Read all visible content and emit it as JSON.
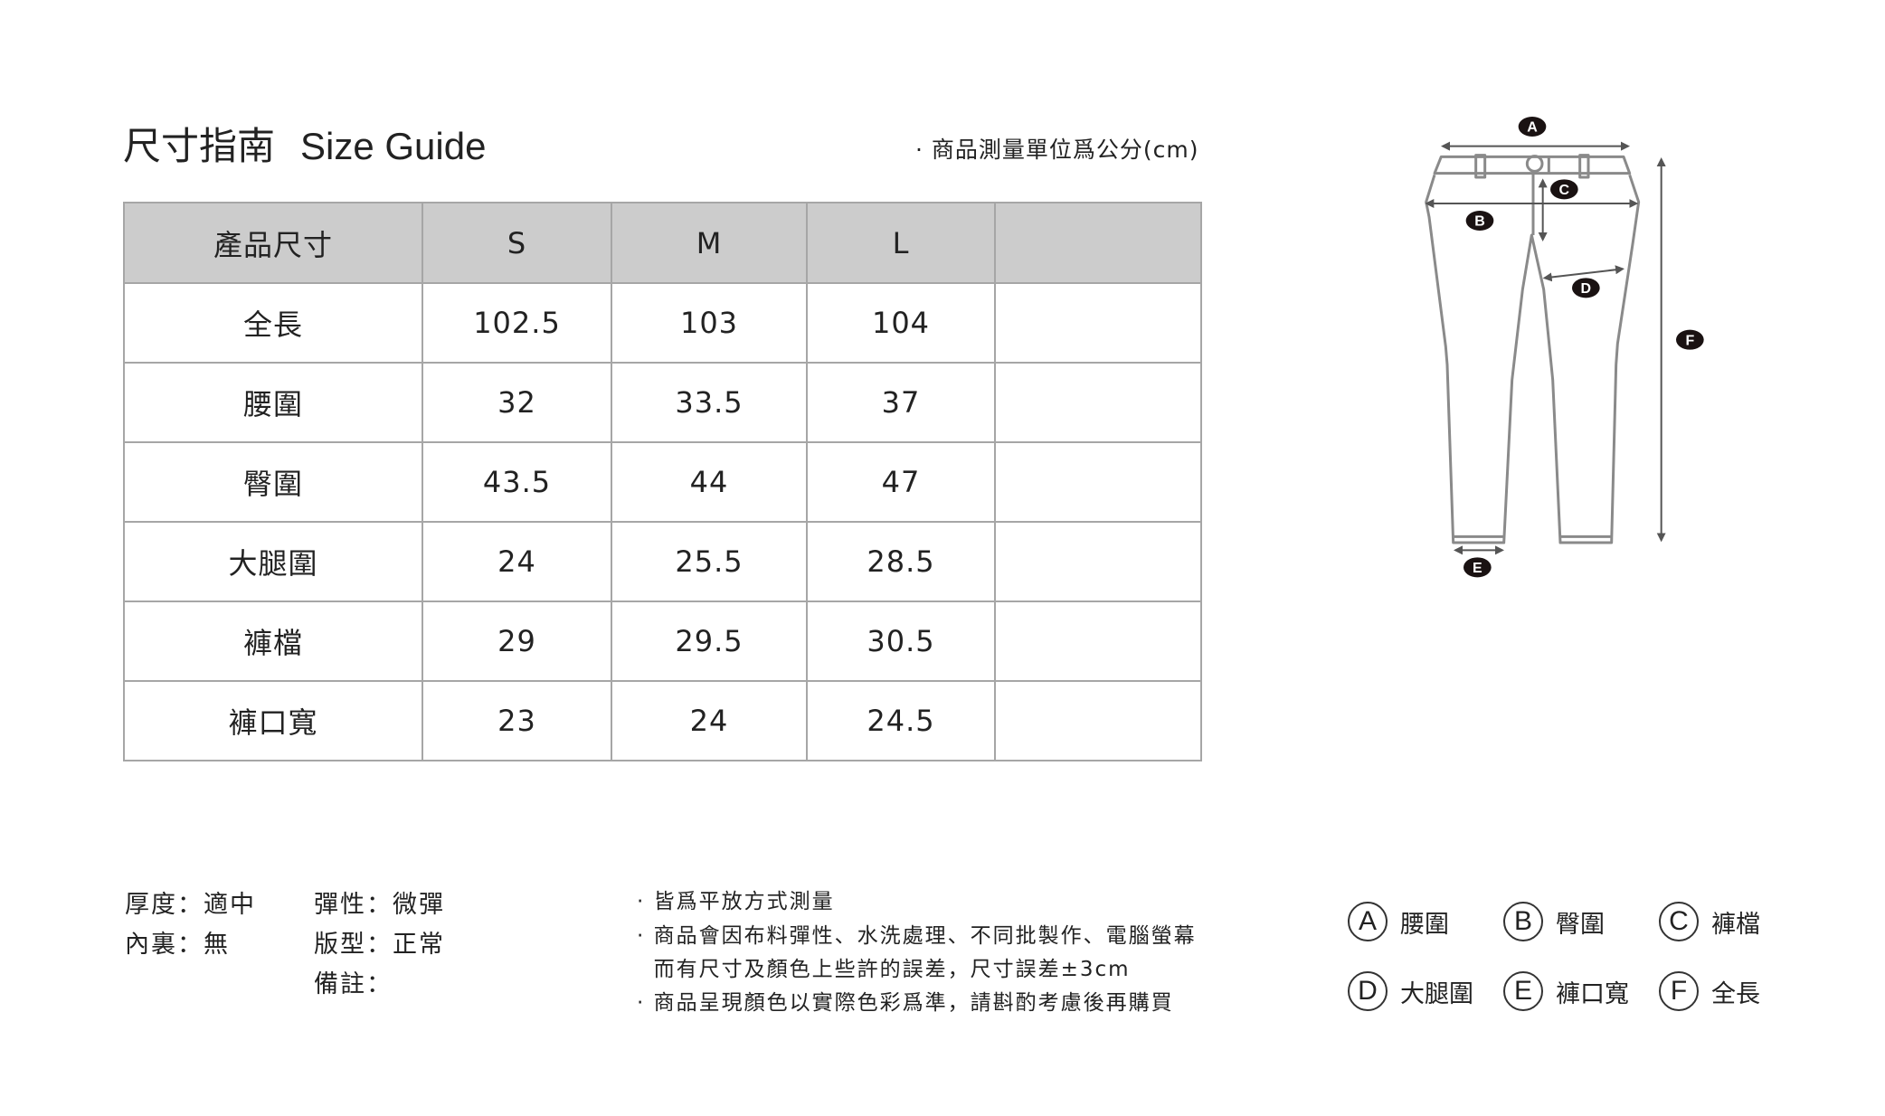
{
  "title": {
    "zh": "尺寸指南",
    "en": "Size Guide"
  },
  "unit_note": "· 商品測量單位爲公分(cm)",
  "table": {
    "headers": [
      "產品尺寸",
      "S",
      "M",
      "L",
      ""
    ],
    "rows": [
      [
        "全長",
        "102.5",
        "103",
        "104",
        ""
      ],
      [
        "腰圍",
        "32",
        "33.5",
        "37",
        ""
      ],
      [
        "臀圍",
        "43.5",
        "44",
        "47",
        ""
      ],
      [
        "大腿圍",
        "24",
        "25.5",
        "28.5",
        ""
      ],
      [
        "褲檔",
        "29",
        "29.5",
        "30.5",
        ""
      ],
      [
        "褲口寬",
        "23",
        "24",
        "24.5",
        ""
      ]
    ]
  },
  "specs": {
    "thickness": "厚度：適中",
    "lining": "內裏：無",
    "elasticity": "彈性：微彈",
    "fit": "版型：正常",
    "remarks": "備註："
  },
  "notes": [
    "· 皆爲平放方式測量",
    "· 商品會因布料彈性、水洗處理、不同批製作、電腦螢幕",
    "  而有尺寸及顏色上些許的誤差，尺寸誤差±3cm",
    "· 商品呈現顏色以實際色彩爲準，請斟酌考慮後再購買"
  ],
  "diagram_labels": [
    "A",
    "B",
    "C",
    "D",
    "E",
    "F"
  ],
  "legend": [
    {
      "letter": "A",
      "label": "腰圍"
    },
    {
      "letter": "B",
      "label": "臀圍"
    },
    {
      "letter": "C",
      "label": "褲檔"
    },
    {
      "letter": "D",
      "label": "大腿圍"
    },
    {
      "letter": "E",
      "label": "褲口寬"
    },
    {
      "letter": "F",
      "label": "全長"
    }
  ],
  "colors": {
    "header_bg": "#cccccc",
    "border": "#a6a6a6",
    "outline": "#808080",
    "label_bg": "#1a1212"
  }
}
